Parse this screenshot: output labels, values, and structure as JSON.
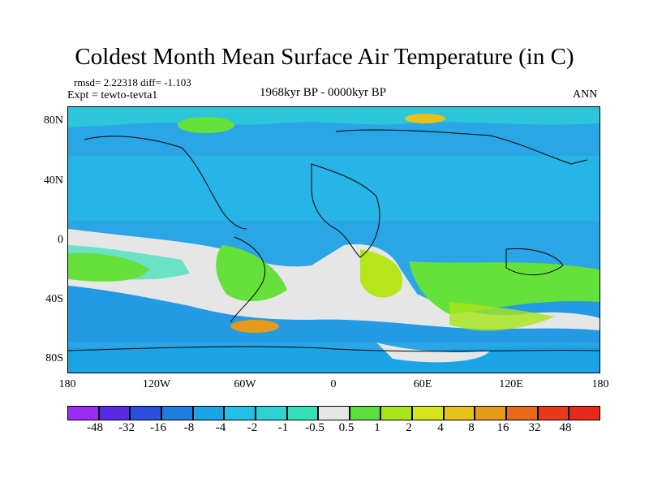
{
  "title": "Coldest Month Mean Surface Air Temperature (in C)",
  "stats_line": "rmsd= 2.22318  diff= -1.103",
  "expt_line": "Expt = tewto-tevta1",
  "period": "1968kyr BP - 0000kyr BP",
  "season": "ANN",
  "y_ticks": [
    "80N",
    "40N",
    "0",
    "40S",
    "80S"
  ],
  "x_ticks": [
    "180",
    "120W",
    "60W",
    "0",
    "60E",
    "120E",
    "180"
  ],
  "colorbar": {
    "labels": [
      "-48",
      "-32",
      "-16",
      "-8",
      "-4",
      "-2",
      "-1",
      "-0.5",
      "0.5",
      "1",
      "2",
      "4",
      "8",
      "16",
      "32",
      "48"
    ],
    "colors": [
      "#9b2cf2",
      "#5a2be6",
      "#2d4fe0",
      "#1e7ddd",
      "#1aa4e6",
      "#24bfe8",
      "#2dd3d3",
      "#35e0b8",
      "#e6e6e6",
      "#5be03b",
      "#a8e61a",
      "#d4e61a",
      "#e6c21a",
      "#e69a1a",
      "#e66a1a",
      "#e63a1a",
      "#e62a1a"
    ]
  },
  "map_colors": {
    "ocean_cold": "#2aa6e6",
    "ocean_cool": "#24c9e8",
    "neutral": "#e6e6e6",
    "warm": "#66e03a",
    "warmer": "#b4e61a",
    "hot": "#e69a1a"
  }
}
